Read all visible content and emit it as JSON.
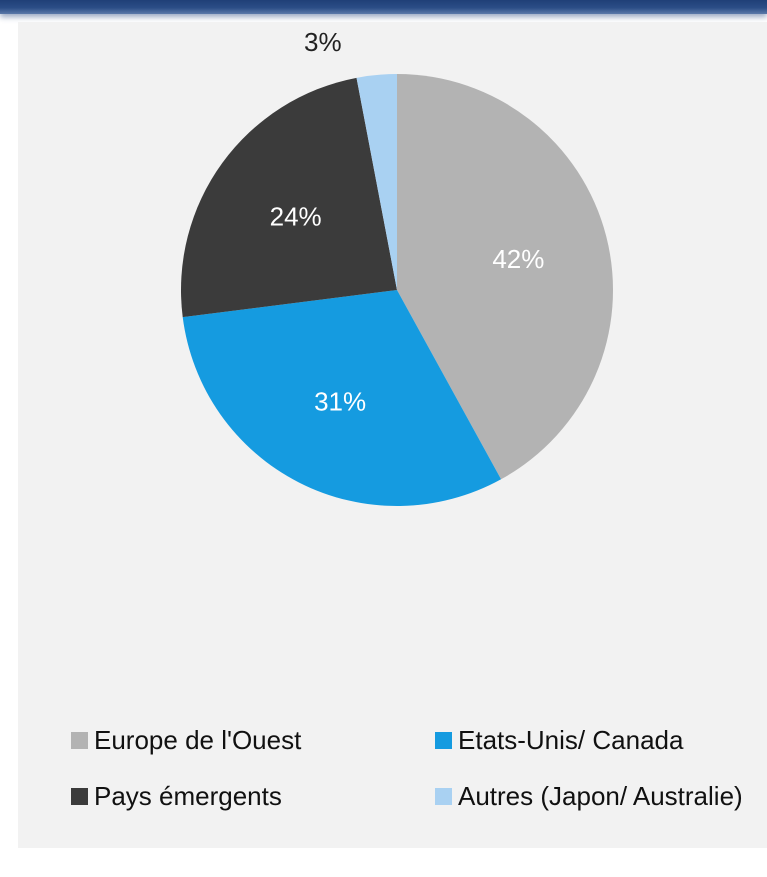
{
  "chart_data": {
    "type": "pie",
    "title": "",
    "slices": [
      {
        "name": "Europe de l'Ouest",
        "value": 42,
        "label": "42%",
        "color": "#b3b3b3",
        "label_color": "#ffffff"
      },
      {
        "name": "Etats-Unis/ Canada",
        "value": 31,
        "label": "31%",
        "color": "#159be0",
        "label_color": "#ffffff"
      },
      {
        "name": "Pays émergents",
        "value": 24,
        "label": "24%",
        "color": "#3b3b3b",
        "label_color": "#ffffff"
      },
      {
        "name": "Autres (Japon/ Australie)",
        "value": 3,
        "label": "3%",
        "color": "#a9d1f2",
        "label_color": "#222222"
      }
    ],
    "start": "12 o'clock",
    "direction": "clockwise",
    "legend_position": "bottom"
  }
}
